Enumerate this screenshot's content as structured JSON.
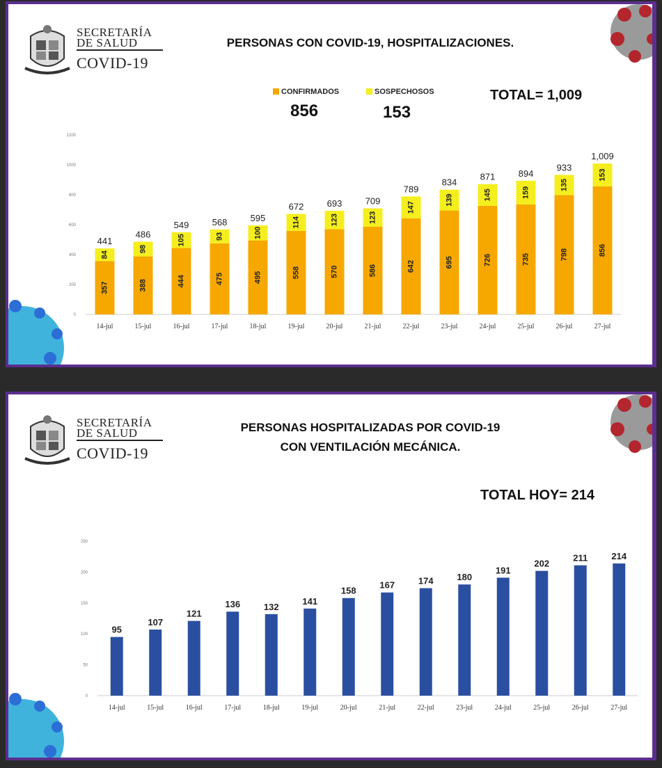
{
  "panel1": {
    "logo": {
      "line1": "SECRETARÍA",
      "line2": "DE SALUD",
      "line3": "COVID-19"
    },
    "title": "PERSONAS CON COVID-19, HOSPITALIZACIONES.",
    "legend": [
      {
        "label": "CONFIRMADOS",
        "value": "856",
        "color": "#f6a800"
      },
      {
        "label": "SOSPECHOSOS",
        "value": "153",
        "color": "#f5ee1e"
      }
    ],
    "total": "TOTAL= 1,009"
  },
  "panel2": {
    "logo": {
      "line1": "SECRETARÍA",
      "line2": "DE SALUD",
      "line3": "COVID-19"
    },
    "title_line1": "PERSONAS HOSPITALIZADAS POR COVID-19",
    "title_line2": "CON VENTILACIÓN MECÁNICA.",
    "total": "TOTAL HOY= 214"
  },
  "chart_data": [
    {
      "type": "bar",
      "stacked": true,
      "categories": [
        "14-jul",
        "15-jul",
        "16-jul",
        "17-jul",
        "18-jul",
        "19-jul",
        "20-jul",
        "21-jul",
        "22-jul",
        "23-jul",
        "24-jul",
        "25-jul",
        "26-jul",
        "27-jul"
      ],
      "series": [
        {
          "name": "CONFIRMADOS",
          "color": "#f6a800",
          "values": [
            357,
            388,
            444,
            475,
            495,
            558,
            570,
            586,
            642,
            695,
            726,
            735,
            798,
            856
          ]
        },
        {
          "name": "SOSPECHOSOS",
          "color": "#f5ee1e",
          "values": [
            84,
            98,
            105,
            93,
            100,
            114,
            123,
            123,
            147,
            139,
            145,
            159,
            135,
            153
          ]
        }
      ],
      "totals": [
        "441",
        "486",
        "549",
        "568",
        "595",
        "672",
        "693",
        "709",
        "789",
        "834",
        "871",
        "894",
        "933",
        "1,009"
      ],
      "ylim": [
        0,
        1200
      ],
      "yticks": [
        "0",
        "200",
        "400",
        "600",
        "800",
        "1000",
        "1200"
      ],
      "grid": false
    },
    {
      "type": "bar",
      "categories": [
        "14-jul",
        "15-jul",
        "16-jul",
        "17-jul",
        "18-jul",
        "19-jul",
        "20-jul",
        "21-jul",
        "22-jul",
        "23-jul",
        "24-jul",
        "25-jul",
        "26-jul",
        "27-jul"
      ],
      "series": [
        {
          "color": "#2b4fa0",
          "values": [
            95,
            107,
            121,
            136,
            132,
            141,
            158,
            167,
            174,
            180,
            191,
            202,
            211,
            214
          ]
        }
      ],
      "ylim": [
        0,
        250
      ],
      "yticks": [
        "0",
        "50",
        "100",
        "150",
        "200",
        "250"
      ],
      "grid": false
    }
  ],
  "colors": {
    "frame": "#5b2f8f",
    "virus_red": "#b3262d",
    "virus_blue": "#1fa6d6"
  },
  "icons": [
    "state-crest-icon",
    "coronavirus-red-icon",
    "coronavirus-blue-icon"
  ]
}
